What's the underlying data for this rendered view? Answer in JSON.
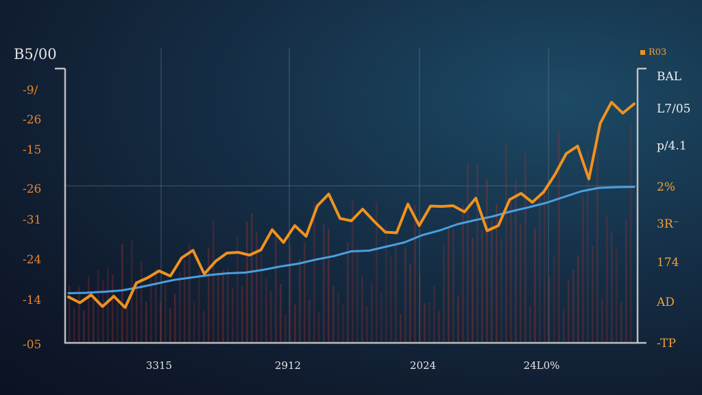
{
  "chart_data": {
    "type": "line",
    "title": "B5/00",
    "legend": "R03",
    "x_ticks": [
      "3315",
      "2912",
      "2024",
      "24L0%"
    ],
    "y_ticks_left": [
      "-9/",
      "-26",
      "-15",
      "-26",
      "-31",
      "-24",
      "-14",
      "-05"
    ],
    "y_ticks_right": [
      "BAL",
      "L7/05",
      "p/4.1",
      "2%",
      "3R⁻",
      "174",
      "AD",
      "-TP"
    ],
    "colors": {
      "trend_line": "#4a9fe0",
      "price_line": "#f0921e",
      "axis": "#bfbfbf",
      "volume_bars": "#a8332c"
    },
    "grid": true,
    "series": [
      {
        "values": [
          14.5,
          14.6,
          14.9,
          15.3,
          16.2,
          17.3,
          18.4,
          19.1,
          19.8,
          20.3,
          20.5,
          21.3,
          22.3,
          23.1,
          24.3,
          25.3,
          26.7,
          26.9,
          28.1,
          29.3,
          31.4,
          32.8,
          34.6,
          35.8,
          36.9,
          38.3,
          39.5,
          40.8,
          42.5,
          44.2,
          45.2,
          45.4,
          45.5
        ]
      },
      {
        "values": [
          13.4,
          11.7,
          14.0,
          10.6,
          13.6,
          10.3,
          17.5,
          19.0,
          21.0,
          19.5,
          24.8,
          27.0,
          20.1,
          23.8,
          26.2,
          26.4,
          25.6,
          27.1,
          33.0,
          29.3,
          34.2,
          31.1,
          40.0,
          43.4,
          36.3,
          35.6,
          39.0,
          35.5,
          32.3,
          32.1,
          40.5,
          34.2,
          39.9,
          39.8,
          40.0,
          38.2,
          42.2,
          32.7,
          34.2,
          41.8,
          43.6,
          41.0,
          44.0,
          49.1,
          55.2,
          57.4,
          47.8,
          64.0,
          70.2,
          67.0,
          69.7
        ]
      }
    ]
  }
}
